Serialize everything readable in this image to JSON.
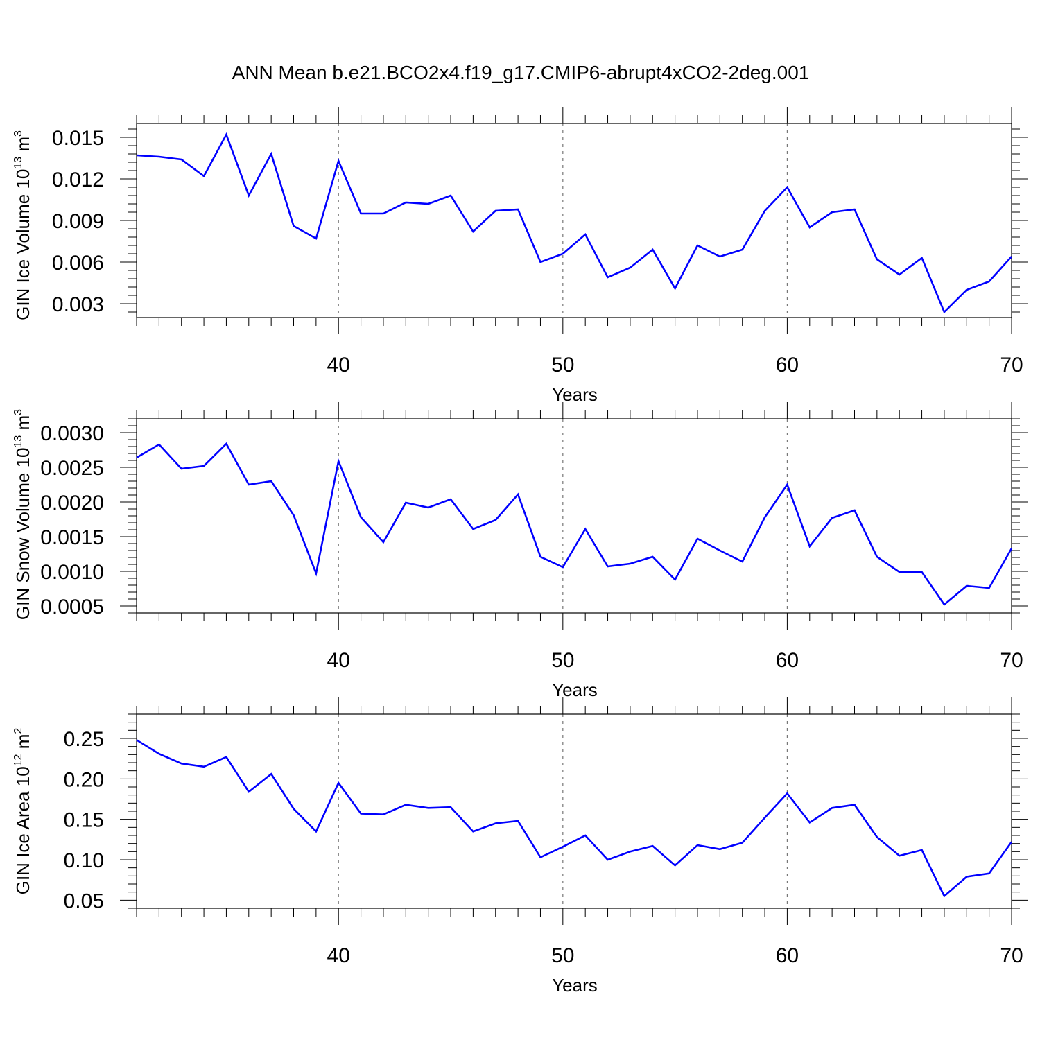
{
  "figure": {
    "title": "ANN Mean b.e21.BCO2x4.f19_g17.CMIP6-abrupt4xCO2-2deg.001"
  },
  "chart_data": [
    {
      "type": "line",
      "title": "ANN Mean b.e21.BCO2x4.f19_g17.CMIP6-abrupt4xCO2-2deg.001",
      "xlabel": "Years",
      "ylabel": {
        "text": "GIN Ice Volume 10",
        "sup": "13",
        "after": " m",
        "sup2": "3"
      },
      "xlim": [
        31,
        70
      ],
      "ylim": [
        0.002,
        0.016
      ],
      "xticks": [
        40,
        50,
        60,
        70
      ],
      "xtick_labels": [
        "40",
        "50",
        "60",
        "70"
      ],
      "yticks": [
        0.003,
        0.006,
        0.009,
        0.012,
        0.015
      ],
      "ytick_labels": [
        "0.003",
        "0.006",
        "0.009",
        "0.012",
        "0.015"
      ],
      "grid_x": true,
      "color": "#0000ff",
      "series": [
        {
          "name": "GIN Ice Volume",
          "x": [
            31,
            32,
            33,
            34,
            35,
            36,
            37,
            38,
            39,
            40,
            41,
            42,
            43,
            44,
            45,
            46,
            47,
            48,
            49,
            50,
            51,
            52,
            53,
            54,
            55,
            56,
            57,
            58,
            59,
            60,
            61,
            62,
            63,
            64,
            65,
            66,
            67,
            68,
            69,
            70
          ],
          "values": [
            0.0137,
            0.0136,
            0.0134,
            0.0122,
            0.0152,
            0.0108,
            0.0138,
            0.0086,
            0.0077,
            0.0133,
            0.0095,
            0.0095,
            0.0103,
            0.0102,
            0.0108,
            0.0082,
            0.0097,
            0.0098,
            0.006,
            0.0066,
            0.008,
            0.0049,
            0.0056,
            0.0069,
            0.0041,
            0.0072,
            0.0064,
            0.0069,
            0.0097,
            0.0114,
            0.0085,
            0.0096,
            0.0098,
            0.0062,
            0.0051,
            0.0063,
            0.0024,
            0.004,
            0.0046,
            0.0064
          ]
        }
      ]
    },
    {
      "type": "line",
      "xlabel": "Years",
      "ylabel": {
        "text": "GIN Snow Volume 10",
        "sup": "13",
        "after": " m",
        "sup2": "3"
      },
      "xlim": [
        31,
        70
      ],
      "ylim": [
        0.0004,
        0.0032
      ],
      "xticks": [
        40,
        50,
        60,
        70
      ],
      "xtick_labels": [
        "40",
        "50",
        "60",
        "70"
      ],
      "yticks": [
        0.0005,
        0.001,
        0.0015,
        0.002,
        0.0025,
        0.003
      ],
      "ytick_labels": [
        "0.0005",
        "0.0010",
        "0.0015",
        "0.0020",
        "0.0025",
        "0.0030"
      ],
      "grid_x": true,
      "color": "#0000ff",
      "series": [
        {
          "name": "GIN Snow Volume",
          "x": [
            31,
            32,
            33,
            34,
            35,
            36,
            37,
            38,
            39,
            40,
            41,
            42,
            43,
            44,
            45,
            46,
            47,
            48,
            49,
            50,
            51,
            52,
            53,
            54,
            55,
            56,
            57,
            58,
            59,
            60,
            61,
            62,
            63,
            64,
            65,
            66,
            67,
            68,
            69,
            70
          ],
          "values": [
            0.00264,
            0.00283,
            0.00248,
            0.00252,
            0.00284,
            0.00225,
            0.0023,
            0.00181,
            0.00097,
            0.00259,
            0.00178,
            0.00142,
            0.00199,
            0.00192,
            0.00204,
            0.00161,
            0.00174,
            0.00211,
            0.00121,
            0.00106,
            0.00161,
            0.00107,
            0.00111,
            0.00121,
            0.00088,
            0.00147,
            0.0013,
            0.00114,
            0.00178,
            0.00225,
            0.00136,
            0.00177,
            0.00188,
            0.00121,
            0.00099,
            0.00099,
            0.00052,
            0.00079,
            0.00076,
            0.00133
          ]
        }
      ]
    },
    {
      "type": "line",
      "xlabel": "Years",
      "ylabel": {
        "text": "GIN Ice Area 10",
        "sup": "12",
        "after": " m",
        "sup2": "2"
      },
      "xlim": [
        31,
        70
      ],
      "ylim": [
        0.04,
        0.28
      ],
      "xticks": [
        40,
        50,
        60,
        70
      ],
      "xtick_labels": [
        "40",
        "50",
        "60",
        "70"
      ],
      "yticks": [
        0.05,
        0.1,
        0.15,
        0.2,
        0.25
      ],
      "ytick_labels": [
        "0.05",
        "0.10",
        "0.15",
        "0.20",
        "0.25"
      ],
      "grid_x": true,
      "color": "#0000ff",
      "series": [
        {
          "name": "GIN Ice Area",
          "x": [
            31,
            32,
            33,
            34,
            35,
            36,
            37,
            38,
            39,
            40,
            41,
            42,
            43,
            44,
            45,
            46,
            47,
            48,
            49,
            50,
            51,
            52,
            53,
            54,
            55,
            56,
            57,
            58,
            59,
            60,
            61,
            62,
            63,
            64,
            65,
            66,
            67,
            68,
            69,
            70
          ],
          "values": [
            0.248,
            0.231,
            0.219,
            0.215,
            0.227,
            0.184,
            0.206,
            0.163,
            0.135,
            0.195,
            0.157,
            0.156,
            0.168,
            0.164,
            0.165,
            0.135,
            0.145,
            0.148,
            0.103,
            0.116,
            0.13,
            0.1,
            0.11,
            0.117,
            0.093,
            0.118,
            0.113,
            0.121,
            0.152,
            0.182,
            0.146,
            0.164,
            0.168,
            0.128,
            0.105,
            0.112,
            0.055,
            0.079,
            0.083,
            0.122
          ]
        }
      ]
    }
  ]
}
